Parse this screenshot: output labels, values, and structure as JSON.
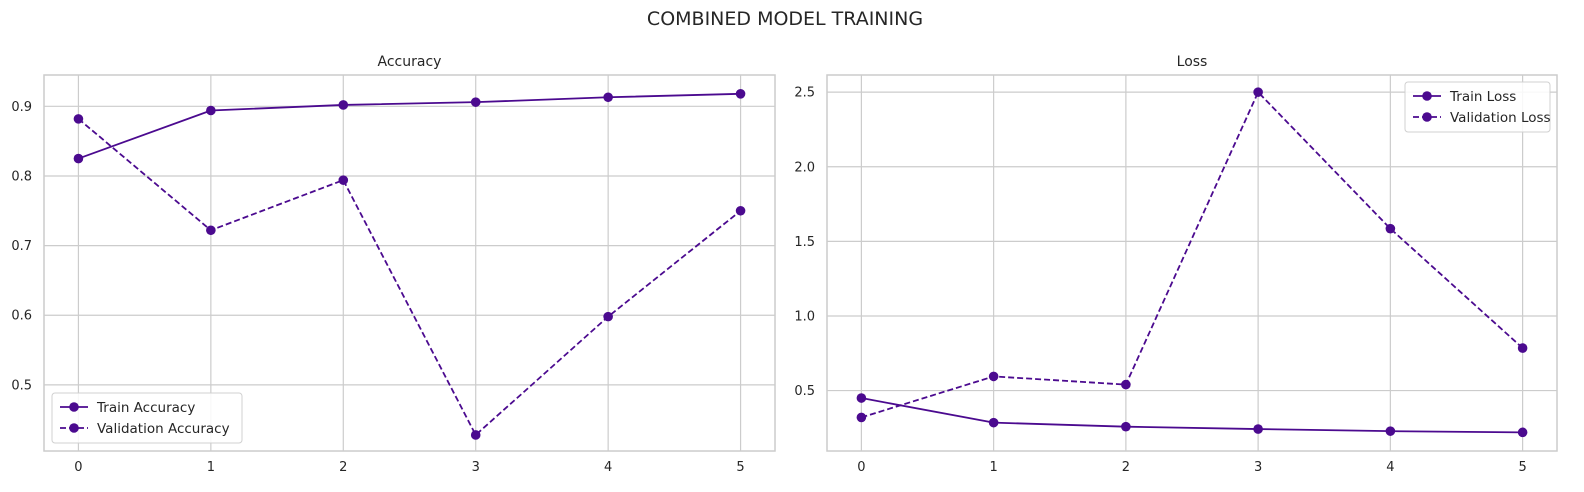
{
  "figure": {
    "title": "COMBINED MODEL TRAINING",
    "line_color": "#4b0a8f"
  },
  "chart_data": [
    {
      "type": "line",
      "title": "Accuracy",
      "xlabel": "",
      "ylabel": "",
      "x": [
        0,
        1,
        2,
        3,
        4,
        5
      ],
      "xlim": [
        -0.26,
        5.26
      ],
      "ylim": [
        0.405,
        0.945
      ],
      "x_ticks": [
        "0",
        "1",
        "2",
        "3",
        "4",
        "5"
      ],
      "y_ticks": [
        "0.5",
        "0.6",
        "0.7",
        "0.8",
        "0.9"
      ],
      "grid": true,
      "legend_position": "lower-left",
      "series": [
        {
          "name": "Train Accuracy",
          "style": "solid",
          "marker": "circle",
          "values": [
            0.825,
            0.894,
            0.902,
            0.906,
            0.913,
            0.918
          ]
        },
        {
          "name": "Validation Accuracy",
          "style": "dashed",
          "marker": "circle",
          "values": [
            0.882,
            0.722,
            0.794,
            0.428,
            0.598,
            0.75
          ]
        }
      ]
    },
    {
      "type": "line",
      "title": "Loss",
      "xlabel": "",
      "ylabel": "",
      "x": [
        0,
        1,
        2,
        3,
        4,
        5
      ],
      "xlim": [
        -0.26,
        5.26
      ],
      "ylim": [
        0.095,
        2.615
      ],
      "x_ticks": [
        "0",
        "1",
        "2",
        "3",
        "4",
        "5"
      ],
      "y_ticks": [
        "0.5",
        "1.0",
        "1.5",
        "2.0",
        "2.5"
      ],
      "grid": true,
      "legend_position": "top-right",
      "series": [
        {
          "name": "Train Loss",
          "style": "solid",
          "marker": "circle",
          "values": [
            0.45,
            0.285,
            0.258,
            0.242,
            0.228,
            0.22
          ]
        },
        {
          "name": "Validation Loss",
          "style": "dashed",
          "marker": "circle",
          "values": [
            0.32,
            0.595,
            0.54,
            2.5,
            1.585,
            0.785
          ]
        }
      ]
    }
  ]
}
